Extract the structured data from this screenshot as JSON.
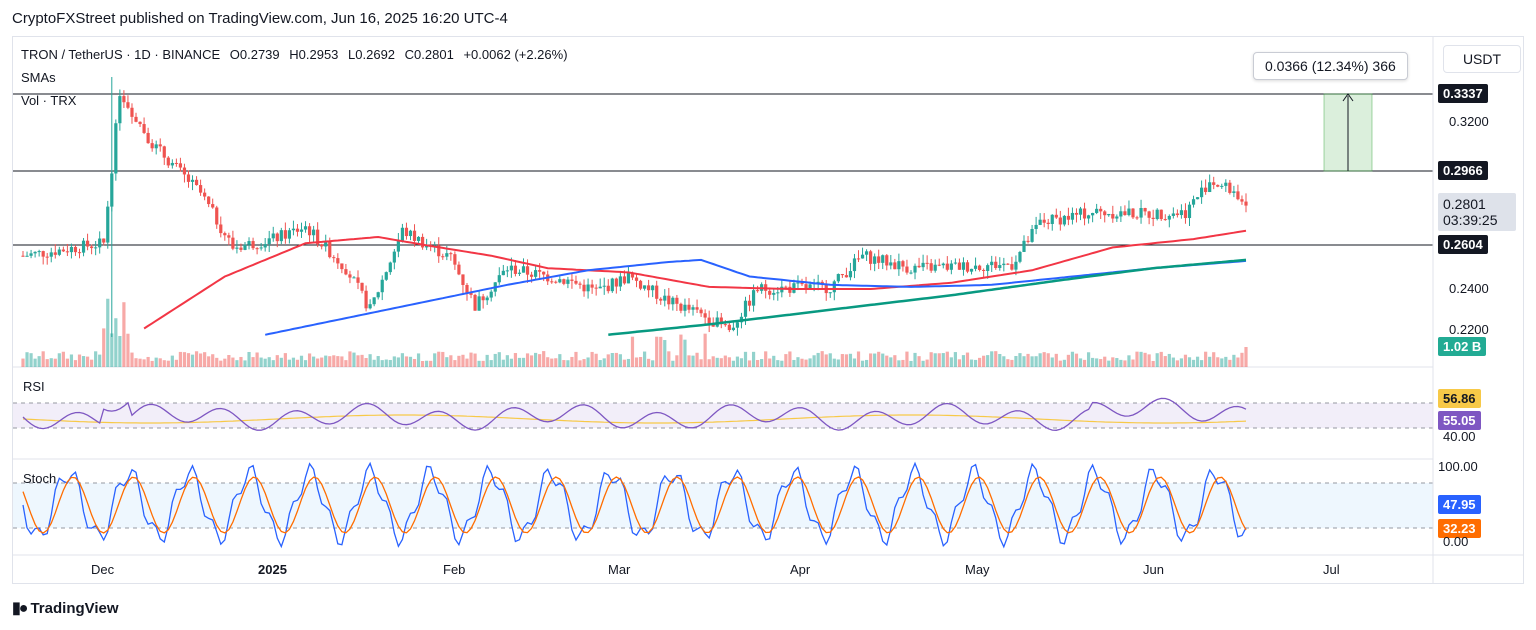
{
  "header": {
    "text": "CryptoFXStreet published on TradingView.com, Jun 16, 2025 16:20 UTC-4"
  },
  "legend": {
    "symbol": "TRON / TetherUS · 1D · BINANCE",
    "open": "O0.2739",
    "high": "H0.2953",
    "low": "L0.2692",
    "close": "C0.2801",
    "change": "+0.0062 (+2.26%)",
    "smas": "SMAs",
    "vol": "Vol · TRX"
  },
  "currency": "USDT",
  "measure": {
    "text": "0.0366 (12.34%) 366"
  },
  "footer": {
    "brand": "TradingView"
  },
  "colors": {
    "up": "#26a69a",
    "down": "#ef5350",
    "sma_short": "#f23645",
    "sma_mid": "#2962ff",
    "sma_long": "#089981",
    "rsi": "#7e57c2",
    "rsi_ma": "#f7c948",
    "stoch_k": "#2962ff",
    "stoch_d": "#ff6d00"
  },
  "chart_data": {
    "type": "candlestick",
    "x_labels": [
      "Dec",
      "2025",
      "Feb",
      "Mar",
      "Apr",
      "May",
      "Jun",
      "Jul"
    ],
    "y_ticks": [
      "0.3200",
      "0.2400",
      "0.2200"
    ],
    "horizontal_levels": [
      "0.3337",
      "0.2966",
      "0.2604"
    ],
    "last_price": "0.2801",
    "countdown": "03:39:25",
    "volume_label": "1.02 B",
    "price_anchors": [
      {
        "t": 0,
        "p": 0.256
      },
      {
        "t": 20,
        "p": 0.262
      },
      {
        "t": 24,
        "p": 0.335
      },
      {
        "t": 32,
        "p": 0.31
      },
      {
        "t": 44,
        "p": 0.286
      },
      {
        "t": 52,
        "p": 0.26
      },
      {
        "t": 62,
        "p": 0.264
      },
      {
        "t": 70,
        "p": 0.27
      },
      {
        "t": 80,
        "p": 0.25
      },
      {
        "t": 86,
        "p": 0.23
      },
      {
        "t": 94,
        "p": 0.268
      },
      {
        "t": 106,
        "p": 0.255
      },
      {
        "t": 112,
        "p": 0.232
      },
      {
        "t": 120,
        "p": 0.25
      },
      {
        "t": 135,
        "p": 0.244
      },
      {
        "t": 142,
        "p": 0.239
      },
      {
        "t": 150,
        "p": 0.246
      },
      {
        "t": 160,
        "p": 0.234
      },
      {
        "t": 170,
        "p": 0.226
      },
      {
        "t": 175,
        "p": 0.22
      },
      {
        "t": 182,
        "p": 0.24
      },
      {
        "t": 200,
        "p": 0.241
      },
      {
        "t": 208,
        "p": 0.256
      },
      {
        "t": 220,
        "p": 0.25
      },
      {
        "t": 235,
        "p": 0.251
      },
      {
        "t": 245,
        "p": 0.252
      },
      {
        "t": 252,
        "p": 0.272
      },
      {
        "t": 265,
        "p": 0.277
      },
      {
        "t": 280,
        "p": 0.276
      },
      {
        "t": 288,
        "p": 0.277
      },
      {
        "t": 294,
        "p": 0.292
      },
      {
        "t": 300,
        "p": 0.287
      },
      {
        "t": 303,
        "p": 0.2801
      }
    ],
    "sma_short": [
      {
        "t": 30,
        "p": 0.221
      },
      {
        "t": 50,
        "p": 0.246
      },
      {
        "t": 70,
        "p": 0.262
      },
      {
        "t": 88,
        "p": 0.265
      },
      {
        "t": 100,
        "p": 0.261
      },
      {
        "t": 116,
        "p": 0.256
      },
      {
        "t": 130,
        "p": 0.25
      },
      {
        "t": 150,
        "p": 0.248
      },
      {
        "t": 170,
        "p": 0.241
      },
      {
        "t": 190,
        "p": 0.24
      },
      {
        "t": 210,
        "p": 0.24
      },
      {
        "t": 230,
        "p": 0.243
      },
      {
        "t": 250,
        "p": 0.249
      },
      {
        "t": 270,
        "p": 0.26
      },
      {
        "t": 290,
        "p": 0.264
      },
      {
        "t": 303,
        "p": 0.268
      }
    ],
    "sma_mid": [
      {
        "t": 60,
        "p": 0.218
      },
      {
        "t": 80,
        "p": 0.226
      },
      {
        "t": 100,
        "p": 0.234
      },
      {
        "t": 120,
        "p": 0.242
      },
      {
        "t": 140,
        "p": 0.249
      },
      {
        "t": 160,
        "p": 0.253
      },
      {
        "t": 168,
        "p": 0.254
      },
      {
        "t": 180,
        "p": 0.246
      },
      {
        "t": 200,
        "p": 0.242
      },
      {
        "t": 220,
        "p": 0.241
      },
      {
        "t": 240,
        "p": 0.242
      },
      {
        "t": 260,
        "p": 0.246
      },
      {
        "t": 280,
        "p": 0.25
      },
      {
        "t": 303,
        "p": 0.2535
      }
    ],
    "sma_long": [
      {
        "t": 145,
        "p": 0.218
      },
      {
        "t": 170,
        "p": 0.223
      },
      {
        "t": 200,
        "p": 0.23
      },
      {
        "t": 230,
        "p": 0.237
      },
      {
        "t": 260,
        "p": 0.245
      },
      {
        "t": 280,
        "p": 0.25
      },
      {
        "t": 303,
        "p": 0.254
      }
    ],
    "rsi": {
      "label": "RSI",
      "value": "55.05",
      "ma_value": "56.86",
      "lower": "40.00"
    },
    "stoch": {
      "label": "Stoch",
      "k_value": "47.95",
      "d_value": "32.23",
      "upper": "100.00",
      "lower": "0.00"
    }
  }
}
